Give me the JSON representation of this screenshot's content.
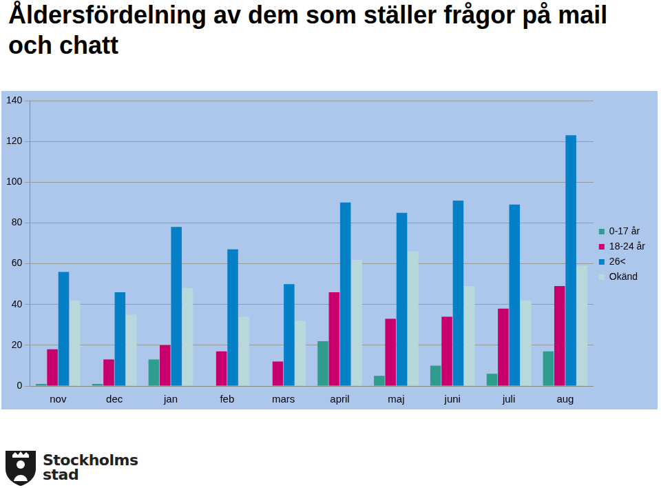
{
  "chart_data": {
    "type": "bar",
    "title": "Åldersfördelning av dem som ställer frågor på mail och chatt",
    "categories": [
      "nov",
      "dec",
      "jan",
      "feb",
      "mars",
      "april",
      "maj",
      "juni",
      "juli",
      "aug"
    ],
    "series": [
      {
        "name": "0-17 år",
        "color": "#2f9d8e",
        "values": [
          1,
          1,
          13,
          0,
          0,
          22,
          5,
          10,
          6,
          17
        ]
      },
      {
        "name": "18-24 år",
        "color": "#c8006e",
        "values": [
          18,
          13,
          20,
          17,
          12,
          46,
          33,
          34,
          38,
          49
        ]
      },
      {
        "name": "26<",
        "color": "#0580c6",
        "values": [
          56,
          46,
          78,
          67,
          50,
          90,
          85,
          91,
          89,
          123
        ]
      },
      {
        "name": "Okänd",
        "color": "#b9d8dc",
        "values": [
          42,
          35,
          48,
          34,
          32,
          62,
          66,
          49,
          42,
          59
        ]
      }
    ],
    "ylim": [
      0,
      140
    ],
    "yticks": [
      0,
      20,
      40,
      60,
      80,
      100,
      120,
      140
    ],
    "grid": true,
    "legend": "right",
    "annotations": [
      "Stockholms stad"
    ]
  }
}
